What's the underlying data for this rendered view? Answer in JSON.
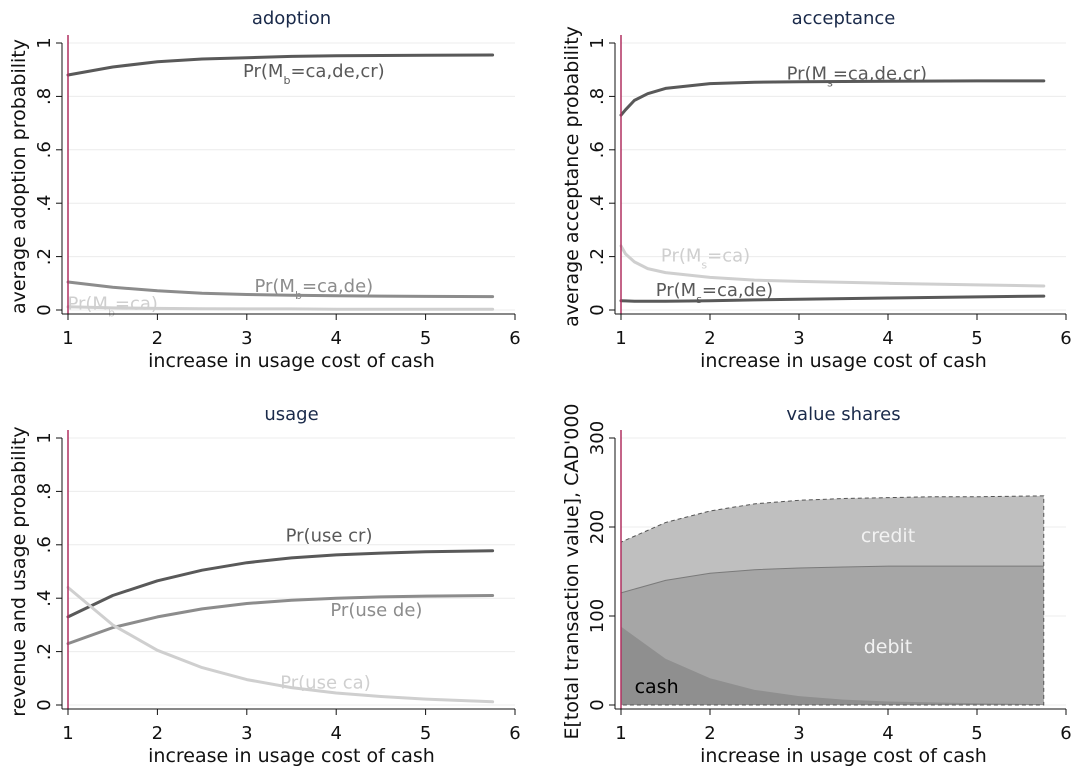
{
  "figure": {
    "colors": {
      "dark": "#595959",
      "mid": "#8c8c8c",
      "light": "#cfcfcf",
      "vline": "#b03060",
      "title": "#1a2a4a"
    }
  },
  "chart_data": [
    {
      "type": "line",
      "title": "adoption",
      "xlabel": "increase in usage cost of cash",
      "ylabel": "average adoption probability",
      "xlim": [
        1,
        6
      ],
      "ylim": [
        0,
        1
      ],
      "xticks": [
        "1",
        "2",
        "3",
        "4",
        "5",
        "6"
      ],
      "yticks": [
        "0",
        ".2",
        ".4",
        ".6",
        ".8",
        "1"
      ],
      "ytick_values": [
        0,
        0.2,
        0.4,
        0.6,
        0.8,
        1
      ],
      "vline_x": 1,
      "x": [
        1,
        1.5,
        2,
        2.5,
        3,
        3.5,
        4,
        4.5,
        5,
        5.75
      ],
      "series": [
        {
          "key": "cr",
          "values": [
            0.88,
            0.91,
            0.93,
            0.94,
            0.945,
            0.95,
            0.952,
            0.953,
            0.954,
            0.955
          ],
          "color": "#595959"
        },
        {
          "key": "de",
          "values": [
            0.105,
            0.085,
            0.072,
            0.063,
            0.058,
            0.055,
            0.053,
            0.052,
            0.051,
            0.05
          ],
          "color": "#8c8c8c"
        },
        {
          "key": "ca",
          "values": [
            0.012,
            0.008,
            0.006,
            0.005,
            0.004,
            0.004,
            0.003,
            0.003,
            0.003,
            0.003
          ],
          "color": "#cfcfcf"
        }
      ],
      "annotations": [
        {
          "base": "Pr(M",
          "sub": "b",
          "rest": "=ca,de,cr)",
          "x": 3.75,
          "y": 0.895,
          "color": "#595959"
        },
        {
          "base": "Pr(M",
          "sub": "b",
          "rest": "=ca,de)",
          "x": 3.75,
          "y": 0.09,
          "color": "#8c8c8c"
        },
        {
          "base": "Pr(M",
          "sub": "b",
          "rest": "=ca)",
          "x": 1.5,
          "y": 0.025,
          "color": "#cfcfcf"
        }
      ]
    },
    {
      "type": "line",
      "title": "acceptance",
      "xlabel": "increase in usage cost of cash",
      "ylabel": "average acceptance probability",
      "xlim": [
        1,
        6
      ],
      "ylim": [
        0,
        1
      ],
      "xticks": [
        "1",
        "2",
        "3",
        "4",
        "5",
        "6"
      ],
      "yticks": [
        "0",
        ".2",
        ".4",
        ".6",
        ".8",
        "1"
      ],
      "ytick_values": [
        0,
        0.2,
        0.4,
        0.6,
        0.8,
        1
      ],
      "vline_x": 1,
      "x": [
        1,
        1.05,
        1.15,
        1.3,
        1.5,
        2,
        2.5,
        3,
        4,
        5,
        5.75
      ],
      "series": [
        {
          "key": "cr",
          "values": [
            0.73,
            0.75,
            0.785,
            0.81,
            0.83,
            0.848,
            0.853,
            0.855,
            0.857,
            0.858,
            0.858
          ],
          "color": "#595959"
        },
        {
          "key": "ca",
          "values": [
            0.24,
            0.21,
            0.18,
            0.155,
            0.14,
            0.122,
            0.112,
            0.107,
            0.1,
            0.094,
            0.09
          ],
          "color": "#cfcfcf"
        },
        {
          "key": "de",
          "values": [
            0.035,
            0.034,
            0.033,
            0.033,
            0.033,
            0.035,
            0.038,
            0.04,
            0.045,
            0.049,
            0.052
          ],
          "color": "#595959"
        }
      ],
      "annotations": [
        {
          "base": "Pr(M",
          "sub": "s",
          "rest": "=ca,de,cr)",
          "x": 3.65,
          "y": 0.885,
          "color": "#595959"
        },
        {
          "base": "Pr(M",
          "sub": "s",
          "rest": "=ca)",
          "x": 1.95,
          "y": 0.205,
          "color": "#cfcfcf"
        },
        {
          "base": "Pr(M",
          "sub": "s",
          "rest": "=ca,de)",
          "x": 2.05,
          "y": 0.075,
          "color": "#595959"
        }
      ]
    },
    {
      "type": "line",
      "title": "usage",
      "xlabel": "increase in usage cost of cash",
      "ylabel": "revenue and usage probability",
      "xlim": [
        1,
        6
      ],
      "ylim": [
        0,
        1
      ],
      "xticks": [
        "1",
        "2",
        "3",
        "4",
        "5",
        "6"
      ],
      "yticks": [
        "0",
        ".2",
        ".4",
        ".6",
        ".8",
        "1"
      ],
      "ytick_values": [
        0,
        0.2,
        0.4,
        0.6,
        0.8,
        1
      ],
      "vline_x": 1,
      "x": [
        1,
        1.5,
        2,
        2.5,
        3,
        3.5,
        4,
        4.5,
        5,
        5.75
      ],
      "series": [
        {
          "key": "cr",
          "values": [
            0.33,
            0.41,
            0.465,
            0.505,
            0.533,
            0.551,
            0.562,
            0.569,
            0.574,
            0.578
          ],
          "color": "#595959"
        },
        {
          "key": "de",
          "values": [
            0.23,
            0.29,
            0.33,
            0.36,
            0.38,
            0.392,
            0.4,
            0.405,
            0.408,
            0.41
          ],
          "color": "#8c8c8c"
        },
        {
          "key": "ca",
          "values": [
            0.44,
            0.3,
            0.205,
            0.14,
            0.095,
            0.065,
            0.045,
            0.032,
            0.022,
            0.012
          ],
          "color": "#cfcfcf"
        }
      ],
      "annotations": [
        {
          "base": "Pr(use cr)",
          "sub": "",
          "rest": "",
          "x": 3.92,
          "y": 0.635,
          "color": "#595959"
        },
        {
          "base": "Pr(use de)",
          "sub": "",
          "rest": "",
          "x": 4.45,
          "y": 0.355,
          "color": "#8c8c8c"
        },
        {
          "base": "Pr(use ca)",
          "sub": "",
          "rest": "",
          "x": 3.88,
          "y": 0.085,
          "color": "#cfcfcf"
        }
      ]
    },
    {
      "type": "area",
      "title": "value shares",
      "xlabel": "increase in usage cost of cash",
      "ylabel": "E[total transaction value], CAD'000",
      "xlim": [
        1,
        6
      ],
      "ylim": [
        0,
        300
      ],
      "xticks": [
        "1",
        "2",
        "3",
        "4",
        "5",
        "6"
      ],
      "yticks": [
        "0",
        "100",
        "200",
        "300"
      ],
      "ytick_values": [
        0,
        100,
        200,
        300
      ],
      "vline_x": 1,
      "x": [
        1,
        1.5,
        2,
        2.5,
        3,
        3.5,
        4,
        4.5,
        5,
        5.75
      ],
      "series": [
        {
          "key": "cash",
          "name": "cash",
          "top": [
            88,
            52,
            30,
            17,
            10,
            6,
            4,
            3,
            2,
            1
          ],
          "color": "#8f8f8f"
        },
        {
          "key": "debit",
          "name": "debit",
          "top": [
            126,
            140,
            148,
            152,
            154,
            155,
            156,
            156,
            156,
            156
          ],
          "color": "#a6a6a6"
        },
        {
          "key": "credit",
          "name": "credit",
          "top": [
            183,
            205,
            218,
            226,
            230,
            232,
            233,
            234,
            234,
            235
          ],
          "color": "#bfbfbf"
        }
      ],
      "labels": [
        {
          "text": "credit",
          "x": 4.0,
          "y": 190,
          "color": "#f2f2f2"
        },
        {
          "text": "debit",
          "x": 4.0,
          "y": 65,
          "color": "#f2f2f2"
        },
        {
          "text": "cash",
          "x": 1.4,
          "y": 20,
          "color": "#000000"
        }
      ]
    }
  ]
}
